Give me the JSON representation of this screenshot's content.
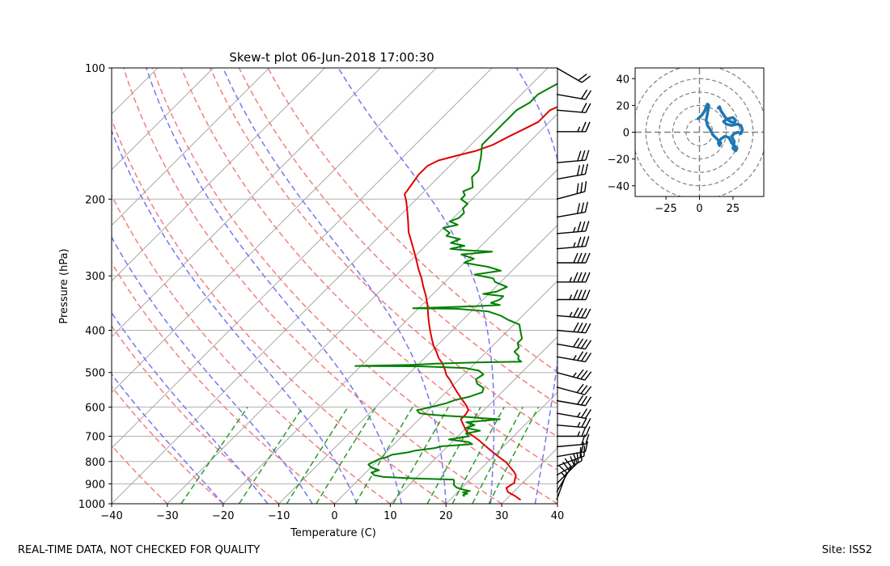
{
  "footer": {
    "left_text": "REAL-TIME DATA, NOT CHECKED FOR QUALITY",
    "right_text": "Site: ISS2"
  },
  "chart_data": [
    {
      "type": "line",
      "subtype": "skew-t log-p",
      "title": "Skew-t plot 06-Jun-2018 17:00:30",
      "xlabel": "Temperature (C)",
      "ylabel": "Pressure (hPa)",
      "xlim": [
        -40,
        40
      ],
      "ylim": [
        1000,
        100
      ],
      "y_scale": "log",
      "x_ticks": [
        -40,
        -30,
        -20,
        -10,
        0,
        10,
        20,
        30,
        40
      ],
      "y_ticks": [
        100,
        200,
        300,
        400,
        500,
        600,
        700,
        800,
        900,
        1000
      ],
      "grid": true,
      "colors": {
        "temperature": "#e00000",
        "dewpoint": "#008000",
        "dry_adiabats": "#f08080",
        "moist_adiabats": "#7777ee",
        "mixing_ratio": "#2e9a2e",
        "isotherms": "#aaaaaa"
      },
      "series": [
        {
          "role": "temperature",
          "points": [
            [
              32.7,
              980
            ],
            [
              31,
              960
            ],
            [
              29,
              940
            ],
            [
              28,
              920
            ],
            [
              28.3,
              905
            ],
            [
              28.5,
              895
            ],
            [
              28,
              880
            ],
            [
              27.5,
              862
            ],
            [
              26.5,
              845
            ],
            [
              25,
              825
            ],
            [
              23.5,
              805
            ],
            [
              21.5,
              785
            ],
            [
              19,
              760
            ],
            [
              16.5,
              735
            ],
            [
              14.5,
              715
            ],
            [
              12.8,
              700
            ],
            [
              11.5,
              690
            ],
            [
              10.5,
              680
            ],
            [
              9,
              660
            ],
            [
              7.5,
              640
            ],
            [
              7.5,
              625
            ],
            [
              7.2,
              610
            ],
            [
              6,
              595
            ],
            [
              4,
              575
            ],
            [
              2,
              555
            ],
            [
              0,
              535
            ],
            [
              -1.5,
              520
            ],
            [
              -3,
              507
            ],
            [
              -4.5,
              490
            ],
            [
              -6,
              475
            ],
            [
              -7.5,
              463
            ],
            [
              -9,
              448
            ],
            [
              -10.5,
              435
            ],
            [
              -12,
              420
            ],
            [
              -13.5,
              405
            ],
            [
              -15,
              390
            ],
            [
              -17,
              370
            ],
            [
              -19,
              350
            ],
            [
              -21,
              333
            ],
            [
              -23,
              318
            ],
            [
              -25,
              303
            ],
            [
              -27,
              290
            ],
            [
              -30,
              270
            ],
            [
              -33,
              252
            ],
            [
              -35.5,
              238
            ],
            [
              -37.5,
              225
            ],
            [
              -39.5,
              213
            ],
            [
              -41.5,
              202
            ],
            [
              -43,
              195
            ],
            [
              -43.5,
              185
            ],
            [
              -44,
              176
            ],
            [
              -44,
              168
            ],
            [
              -43,
              163
            ],
            [
              -40,
              158
            ],
            [
              -38,
              155
            ],
            [
              -36,
              150
            ],
            [
              -34.5,
              143
            ],
            [
              -33,
              137
            ],
            [
              -32,
              133
            ],
            [
              -32,
              129
            ],
            [
              -32,
              125
            ],
            [
              -30.5,
              121
            ],
            [
              -29,
              117
            ],
            [
              -27,
              114
            ],
            [
              -25,
              110
            ],
            [
              -23.5,
              107
            ],
            [
              -21.5,
              104
            ],
            [
              -20,
              101
            ]
          ]
        },
        {
          "role": "dewpoint",
          "points": [
            [
              22,
              962
            ],
            [
              21.5,
              955
            ],
            [
              22,
              948
            ],
            [
              21,
              942
            ],
            [
              22,
              935
            ],
            [
              20.5,
              928
            ],
            [
              19,
              918
            ],
            [
              18,
              905
            ],
            [
              17.5,
              890
            ],
            [
              17,
              880
            ],
            [
              10,
              875
            ],
            [
              4,
              868
            ],
            [
              2,
              860
            ],
            [
              1,
              848
            ],
            [
              2,
              838
            ],
            [
              0,
              825
            ],
            [
              -1,
              812
            ],
            [
              -0.5,
              800
            ],
            [
              0,
              790
            ],
            [
              1,
              782
            ],
            [
              1.5,
              772
            ],
            [
              4,
              762
            ],
            [
              5,
              755
            ],
            [
              8,
              745
            ],
            [
              9,
              738
            ],
            [
              14,
              730
            ],
            [
              13,
              722
            ],
            [
              9,
              712
            ],
            [
              12,
              700
            ],
            [
              11,
              690
            ],
            [
              13,
              680
            ],
            [
              10,
              670
            ],
            [
              11,
              660
            ],
            [
              9,
              650
            ],
            [
              14.5,
              640
            ],
            [
              11,
              636
            ],
            [
              8,
              632
            ],
            [
              4,
              628
            ],
            [
              1,
              624
            ],
            [
              -1,
              620
            ],
            [
              -2,
              610
            ],
            [
              0,
              600
            ],
            [
              2,
              588
            ],
            [
              3,
              578
            ],
            [
              5,
              568
            ],
            [
              6.5,
              555
            ],
            [
              6,
              543
            ],
            [
              4,
              530
            ],
            [
              3,
              518
            ],
            [
              3.5,
              505
            ],
            [
              2,
              495
            ],
            [
              -1,
              488
            ],
            [
              -9,
              484
            ],
            [
              -21,
              483
            ],
            [
              -11,
              480
            ],
            [
              -7,
              477
            ],
            [
              0,
              474
            ],
            [
              8,
              472
            ],
            [
              7,
              466
            ],
            [
              6.5,
              458
            ],
            [
              5,
              448
            ],
            [
              5,
              438
            ],
            [
              4,
              428
            ],
            [
              4,
              418
            ],
            [
              3,
              408
            ],
            [
              2,
              398
            ],
            [
              1,
              388
            ],
            [
              -2,
              378
            ],
            [
              -4,
              370
            ],
            [
              -7,
              362
            ],
            [
              -13,
              357
            ],
            [
              -21,
              356
            ],
            [
              -15,
              354
            ],
            [
              -10,
              352
            ],
            [
              -6,
              350
            ],
            [
              -8,
              346
            ],
            [
              -7,
              340
            ],
            [
              -7,
              334
            ],
            [
              -11,
              330
            ],
            [
              -9,
              326
            ],
            [
              -8,
              318
            ],
            [
              -11,
              310
            ],
            [
              -12,
              304
            ],
            [
              -16,
              298
            ],
            [
              -12,
              292
            ],
            [
              -15,
              286
            ],
            [
              -20,
              280
            ],
            [
              -19,
              274
            ],
            [
              -22,
              268
            ],
            [
              -17,
              264
            ],
            [
              -22,
              262
            ],
            [
              -25,
              260
            ],
            [
              -23,
              256
            ],
            [
              -26,
              252
            ],
            [
              -25,
              247
            ],
            [
              -28,
              243
            ],
            [
              -28,
              239
            ],
            [
              -30,
              233
            ],
            [
              -28,
              229
            ],
            [
              -30,
              225
            ],
            [
              -29,
              221
            ],
            [
              -29,
              215
            ],
            [
              -30,
              210
            ],
            [
              -30,
              205
            ],
            [
              -32,
              200
            ],
            [
              -32,
              196
            ],
            [
              -33,
              192
            ],
            [
              -32,
              188
            ],
            [
              -33,
              183
            ],
            [
              -34,
              178
            ],
            [
              -34,
              172
            ],
            [
              -35,
              166
            ],
            [
              -36,
              160
            ],
            [
              -37,
              155
            ],
            [
              -38,
              150
            ],
            [
              -38,
              145
            ],
            [
              -38,
              140
            ],
            [
              -38,
              135
            ],
            [
              -38,
              130
            ],
            [
              -38,
              125
            ],
            [
              -37,
              120
            ],
            [
              -37,
              115
            ],
            [
              -36,
              111
            ],
            [
              -35,
              107
            ],
            [
              -34,
              104
            ],
            [
              -33,
              101
            ]
          ]
        }
      ],
      "wind_barbs": [
        {
          "pressure": 980,
          "speed_kt": 15,
          "dir_deg": 200
        },
        {
          "pressure": 940,
          "speed_kt": 20,
          "dir_deg": 210
        },
        {
          "pressure": 900,
          "speed_kt": 25,
          "dir_deg": 225
        },
        {
          "pressure": 860,
          "speed_kt": 25,
          "dir_deg": 240
        },
        {
          "pressure": 820,
          "speed_kt": 20,
          "dir_deg": 250
        },
        {
          "pressure": 780,
          "speed_kt": 20,
          "dir_deg": 260
        },
        {
          "pressure": 740,
          "speed_kt": 20,
          "dir_deg": 265
        },
        {
          "pressure": 700,
          "speed_kt": 25,
          "dir_deg": 270
        },
        {
          "pressure": 660,
          "speed_kt": 25,
          "dir_deg": 275
        },
        {
          "pressure": 620,
          "speed_kt": 25,
          "dir_deg": 280
        },
        {
          "pressure": 580,
          "speed_kt": 30,
          "dir_deg": 280
        },
        {
          "pressure": 540,
          "speed_kt": 30,
          "dir_deg": 285
        },
        {
          "pressure": 500,
          "speed_kt": 35,
          "dir_deg": 285
        },
        {
          "pressure": 460,
          "speed_kt": 35,
          "dir_deg": 280
        },
        {
          "pressure": 430,
          "speed_kt": 40,
          "dir_deg": 280
        },
        {
          "pressure": 400,
          "speed_kt": 40,
          "dir_deg": 275
        },
        {
          "pressure": 370,
          "speed_kt": 45,
          "dir_deg": 275
        },
        {
          "pressure": 340,
          "speed_kt": 45,
          "dir_deg": 270
        },
        {
          "pressure": 310,
          "speed_kt": 45,
          "dir_deg": 270
        },
        {
          "pressure": 280,
          "speed_kt": 40,
          "dir_deg": 270
        },
        {
          "pressure": 260,
          "speed_kt": 35,
          "dir_deg": 265
        },
        {
          "pressure": 240,
          "speed_kt": 35,
          "dir_deg": 265
        },
        {
          "pressure": 220,
          "speed_kt": 30,
          "dir_deg": 260
        },
        {
          "pressure": 200,
          "speed_kt": 30,
          "dir_deg": 255
        },
        {
          "pressure": 180,
          "speed_kt": 30,
          "dir_deg": 260
        },
        {
          "pressure": 165,
          "speed_kt": 30,
          "dir_deg": 265
        },
        {
          "pressure": 140,
          "speed_kt": 25,
          "dir_deg": 270
        },
        {
          "pressure": 125,
          "speed_kt": 20,
          "dir_deg": 275
        },
        {
          "pressure": 115,
          "speed_kt": 20,
          "dir_deg": 280
        },
        {
          "pressure": 100,
          "speed_kt": 20,
          "dir_deg": 300
        }
      ]
    },
    {
      "type": "line",
      "subtype": "hodograph",
      "xlim": [
        -48,
        48
      ],
      "ylim": [
        -48,
        48
      ],
      "x_ticks": [
        -25,
        0,
        25
      ],
      "y_ticks": [
        -40,
        -20,
        0,
        20,
        40
      ],
      "ring_radii": [
        10,
        20,
        30,
        40,
        50
      ],
      "color": "#1f77b4",
      "points": [
        [
          -1,
          10
        ],
        [
          2,
          13
        ],
        [
          4,
          16
        ],
        [
          5,
          19
        ],
        [
          6,
          21
        ],
        [
          7,
          20
        ],
        [
          6,
          14
        ],
        [
          5,
          9
        ],
        [
          6,
          5
        ],
        [
          8,
          2
        ],
        [
          10,
          -2
        ],
        [
          12,
          -4
        ],
        [
          14,
          -6
        ],
        [
          16,
          -8
        ],
        [
          15,
          -10
        ],
        [
          14,
          -8
        ],
        [
          16,
          -5
        ],
        [
          19,
          -3
        ],
        [
          22,
          -4
        ],
        [
          24,
          -8
        ],
        [
          26,
          -10
        ],
        [
          28,
          -12
        ],
        [
          27,
          -14
        ],
        [
          25,
          -12
        ],
        [
          26,
          -7
        ],
        [
          24,
          -3
        ],
        [
          26,
          -1
        ],
        [
          29,
          0
        ],
        [
          31,
          -1
        ],
        [
          32,
          2
        ],
        [
          31,
          5
        ],
        [
          28,
          6
        ],
        [
          24,
          5
        ],
        [
          20,
          6
        ],
        [
          18,
          8
        ],
        [
          21,
          10
        ],
        [
          25,
          11
        ],
        [
          27,
          9
        ],
        [
          26,
          7
        ],
        [
          23,
          8
        ],
        [
          20,
          10
        ],
        [
          18,
          13
        ],
        [
          16,
          16
        ],
        [
          15,
          19
        ],
        [
          14,
          18
        ]
      ]
    }
  ]
}
